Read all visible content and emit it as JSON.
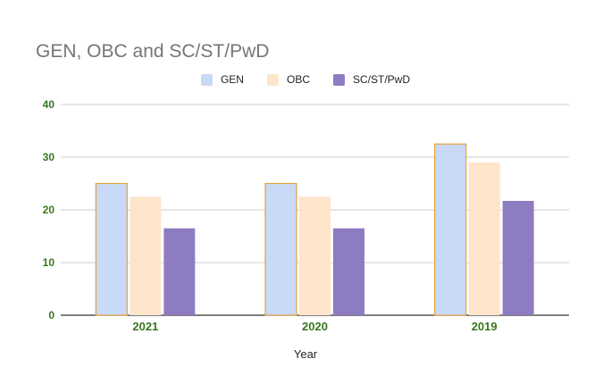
{
  "chart_data": {
    "type": "bar",
    "title": "GEN, OBC and SC/ST/PwD",
    "xlabel": "Year",
    "ylabel": "",
    "categories": [
      "2021",
      "2020",
      "2019"
    ],
    "series": [
      {
        "name": "GEN",
        "values": [
          25,
          25,
          32.5
        ],
        "color": "#c9daf8",
        "stroke": "#e6a23c"
      },
      {
        "name": "OBC",
        "values": [
          22.5,
          22.5,
          29
        ],
        "color": "#fde5cb",
        "stroke": "#fde5cb"
      },
      {
        "name": "SC/ST/PwD",
        "values": [
          16.5,
          16.5,
          21.7
        ],
        "color": "#8e7cc3",
        "stroke": "#8e7cc3"
      }
    ],
    "ylim": [
      0,
      40
    ],
    "yticks": [
      "0",
      "10",
      "20",
      "30",
      "40"
    ],
    "grid": true,
    "legend": "top-center",
    "tick_color": "#38761d",
    "grid_color": "#cccccc",
    "axis_color": "#333333"
  }
}
